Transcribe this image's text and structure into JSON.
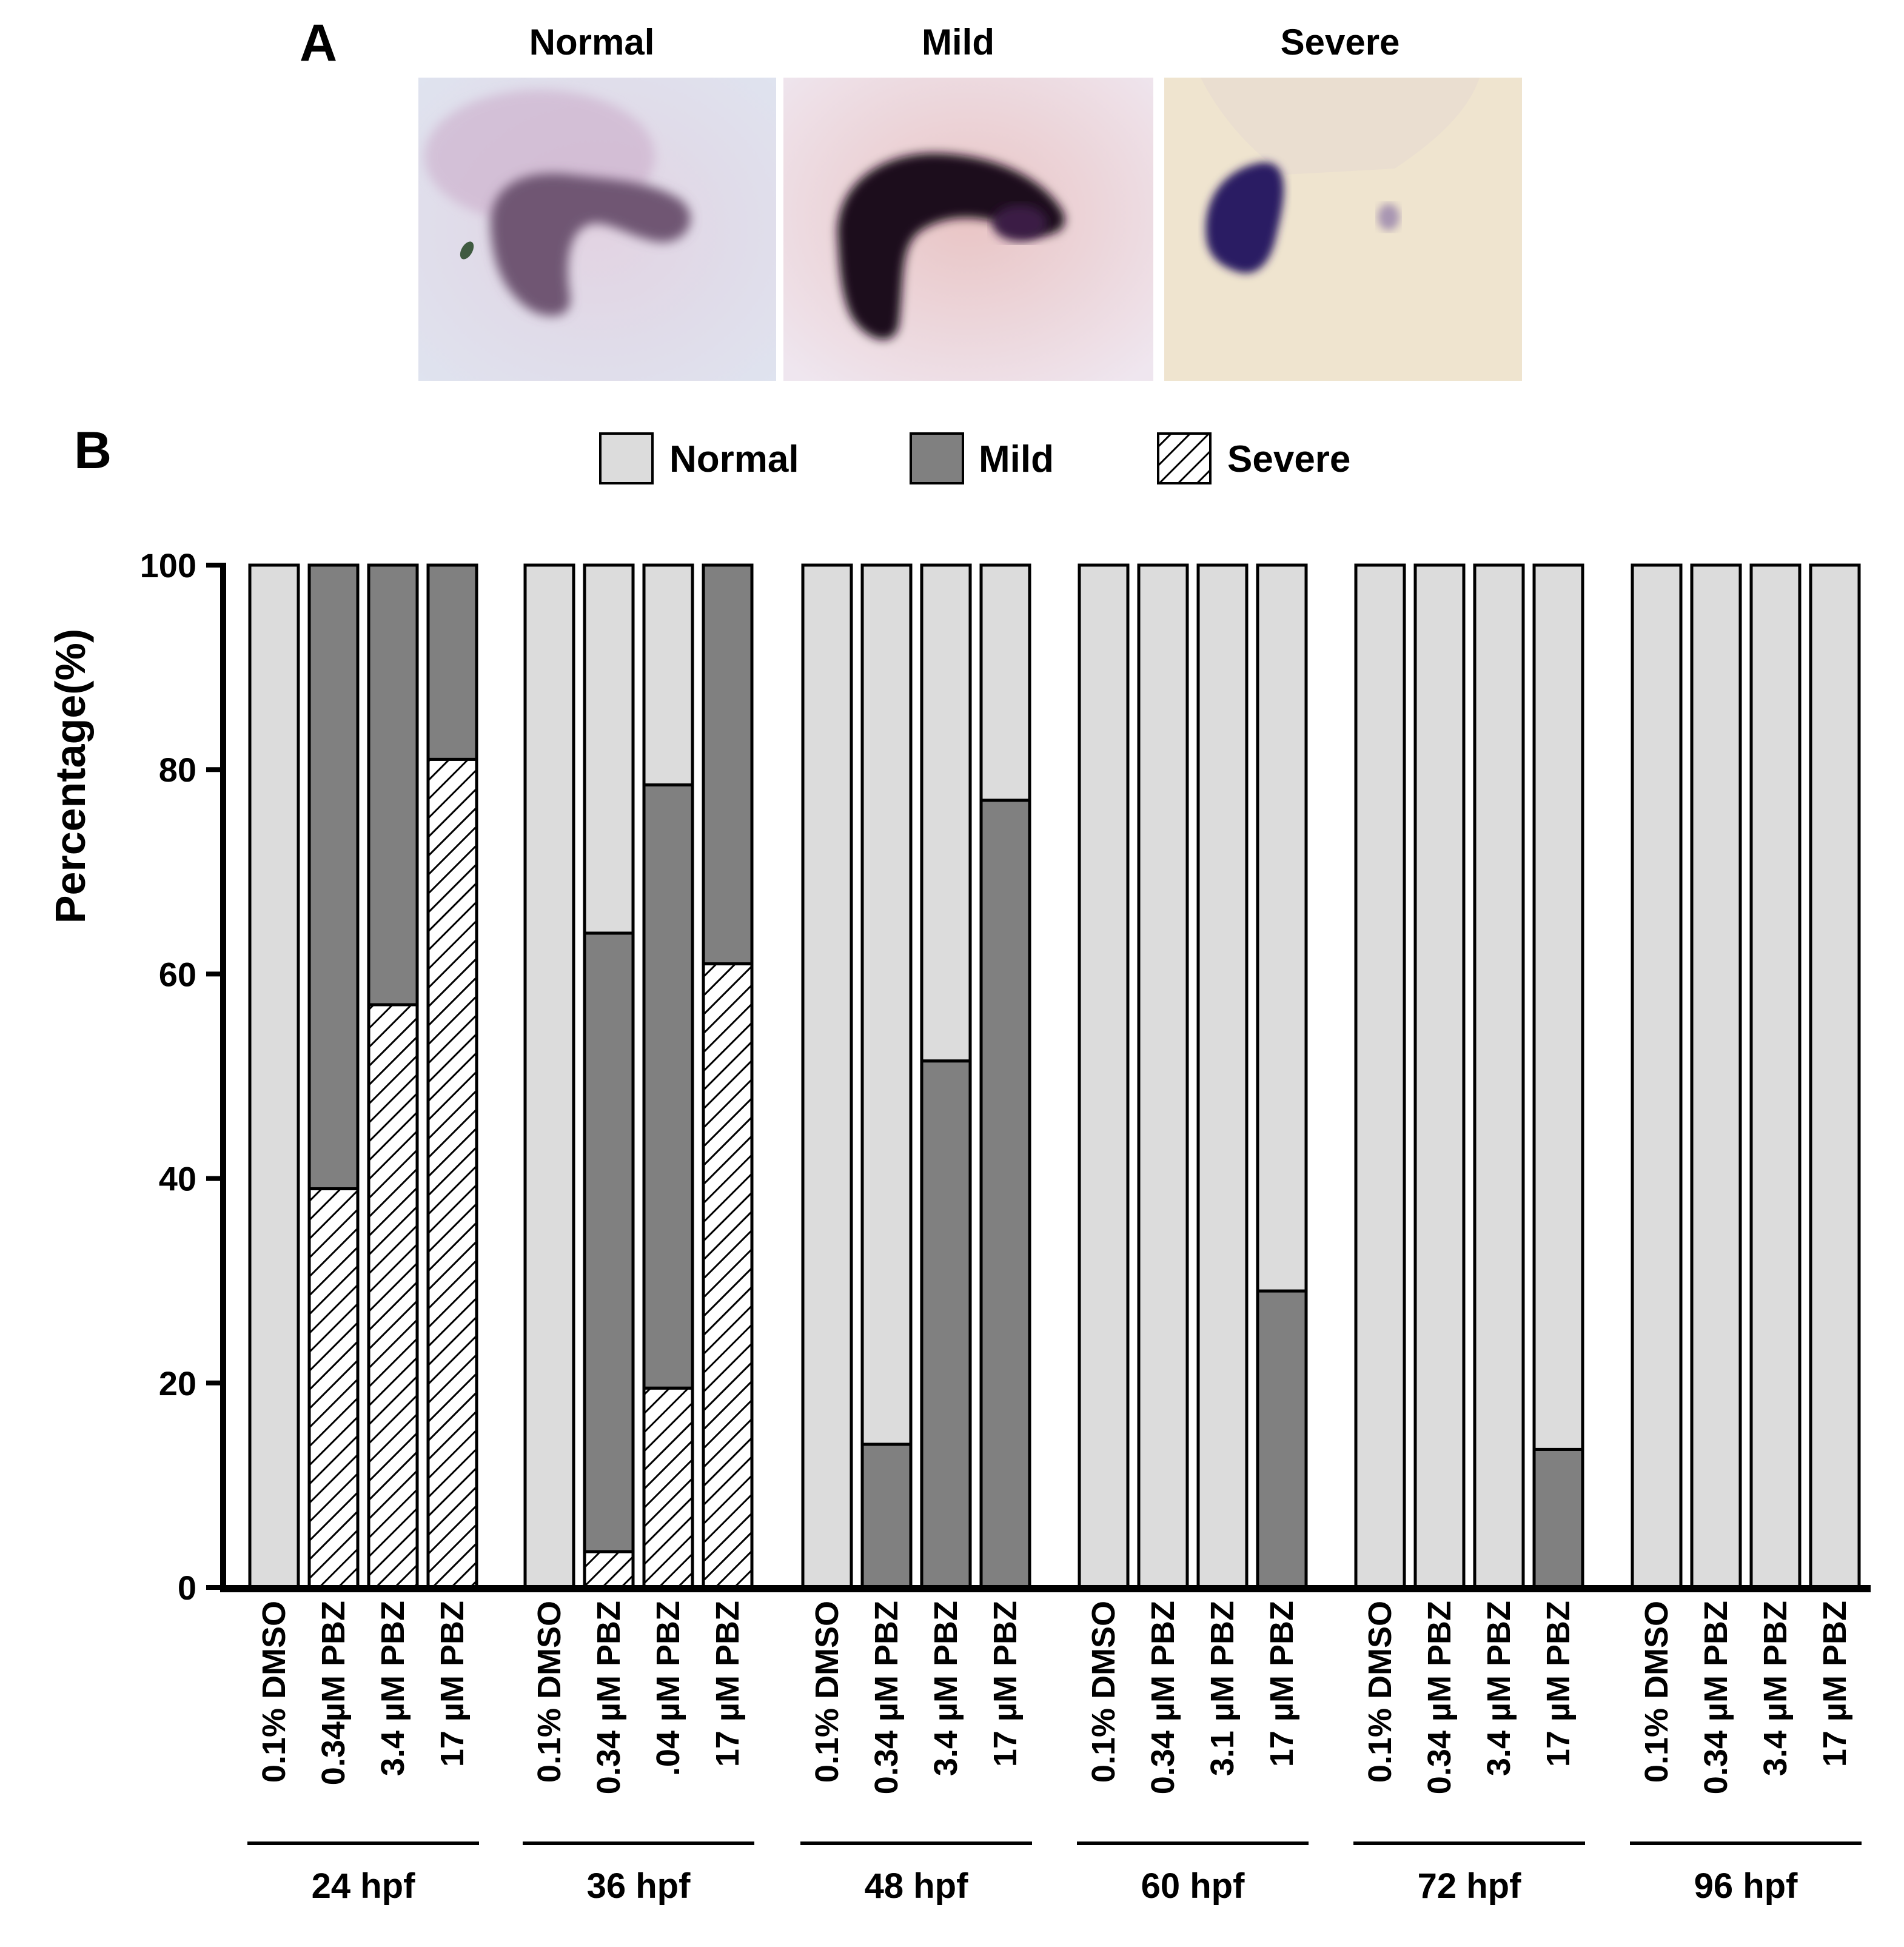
{
  "panel_a": {
    "letter": "A",
    "images": [
      {
        "label": "Normal"
      },
      {
        "label": "Mild"
      },
      {
        "label": "Severe"
      }
    ]
  },
  "panel_b": {
    "letter": "B"
  },
  "colors": {
    "normal": "#dcdcdc",
    "mild": "#808080",
    "severe_hatch": "#000000",
    "axis": "#000000"
  },
  "chart_data": {
    "type": "bar",
    "stacked": true,
    "ylabel": "Percentage(%)",
    "xlabel": "",
    "ylim": [
      0,
      100
    ],
    "yticks": [
      0,
      20,
      40,
      60,
      80,
      100
    ],
    "legend": {
      "placement": "top-center",
      "entries": [
        {
          "name": "Normal",
          "key": "normal"
        },
        {
          "name": "Mild",
          "key": "mild"
        },
        {
          "name": "Severe",
          "key": "severe"
        }
      ]
    },
    "groups": [
      {
        "label": "24 hpf",
        "bars": [
          {
            "label": "0.1% DMSO",
            "severe": 0,
            "mild": 0,
            "normal": 100
          },
          {
            "label": "0.34µM PBZ",
            "severe": 39,
            "mild": 61,
            "normal": 0
          },
          {
            "label": "3.4 µM PBZ",
            "severe": 57,
            "mild": 43,
            "normal": 0
          },
          {
            "label": "17 µM PBZ",
            "severe": 81,
            "mild": 19,
            "normal": 0
          }
        ]
      },
      {
        "label": "36 hpf",
        "bars": [
          {
            "label": "0.1% DMSO",
            "severe": 0,
            "mild": 0,
            "normal": 100
          },
          {
            "label": "0.34 µM PBZ",
            "severe": 3.5,
            "mild": 60.5,
            "normal": 36
          },
          {
            "label": ".04 µM PBZ",
            "severe": 19.5,
            "mild": 59,
            "normal": 21.5
          },
          {
            "label": "17 µM PBZ",
            "severe": 61,
            "mild": 39,
            "normal": 0
          }
        ]
      },
      {
        "label": "48 hpf",
        "bars": [
          {
            "label": "0.1% DMSO",
            "severe": 0,
            "mild": 0,
            "normal": 100
          },
          {
            "label": "0.34 µM PBZ",
            "severe": 0,
            "mild": 14,
            "normal": 86
          },
          {
            "label": "3.4 µM PBZ",
            "severe": 0,
            "mild": 51.5,
            "normal": 48.5
          },
          {
            "label": "17 µM PBZ",
            "severe": 0,
            "mild": 77,
            "normal": 23
          }
        ]
      },
      {
        "label": "60 hpf",
        "bars": [
          {
            "label": "0.1% DMSO",
            "severe": 0,
            "mild": 0,
            "normal": 100
          },
          {
            "label": "0.34 µM PBZ",
            "severe": 0,
            "mild": 0,
            "normal": 100
          },
          {
            "label": "3.1 µM PBZ",
            "severe": 0,
            "mild": 0,
            "normal": 100
          },
          {
            "label": "17 µM PBZ",
            "severe": 0,
            "mild": 29,
            "normal": 71
          }
        ]
      },
      {
        "label": "72 hpf",
        "bars": [
          {
            "label": "0.1% DMSO",
            "severe": 0,
            "mild": 0,
            "normal": 100
          },
          {
            "label": "0.34 µM PBZ",
            "severe": 0,
            "mild": 0,
            "normal": 100
          },
          {
            "label": "3.4 µM PBZ",
            "severe": 0,
            "mild": 0,
            "normal": 100
          },
          {
            "label": "17 µM PBZ",
            "severe": 0,
            "mild": 13.5,
            "normal": 86.5
          }
        ]
      },
      {
        "label": "96 hpf",
        "bars": [
          {
            "label": "0.1% DMSO",
            "severe": 0,
            "mild": 0,
            "normal": 100
          },
          {
            "label": "0.34 µM PBZ",
            "severe": 0,
            "mild": 0,
            "normal": 100
          },
          {
            "label": "3.4 µM PBZ",
            "severe": 0,
            "mild": 0,
            "normal": 100
          },
          {
            "label": "17 µM PBZ",
            "severe": 0,
            "mild": 0,
            "normal": 100
          }
        ]
      }
    ]
  }
}
